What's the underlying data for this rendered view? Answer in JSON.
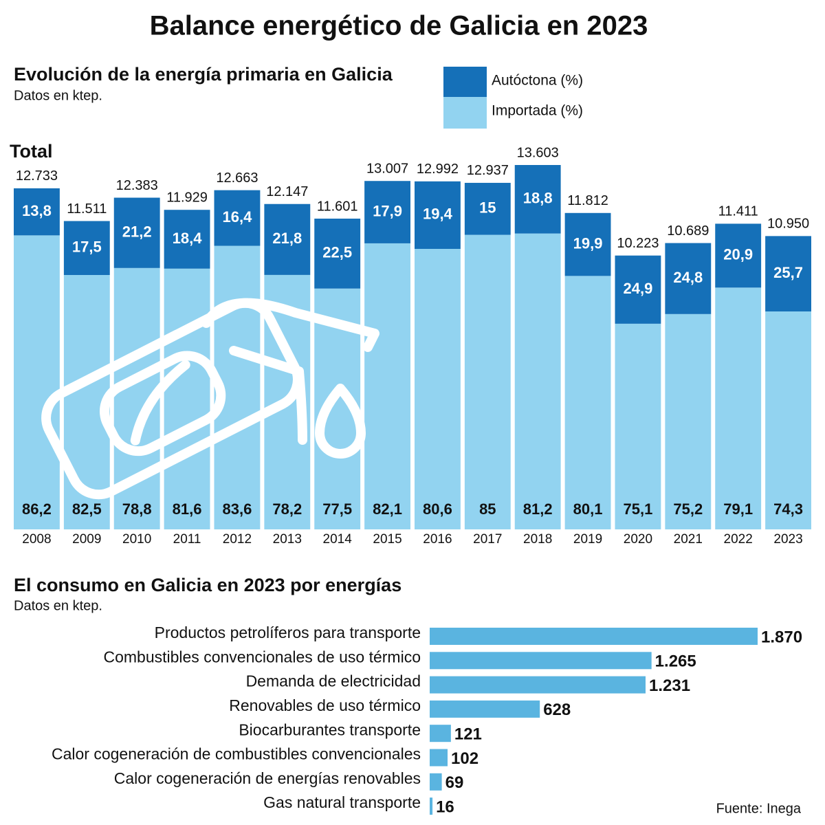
{
  "title": "Balance energético de Galicia en 2023",
  "source": "Fuente: Inega",
  "chart_data": [
    {
      "type": "stacked-bar",
      "title": "Evolución de la energía primaria en Galicia",
      "subtitle": "Datos en ktep.",
      "total_label": "Total",
      "categories": [
        "2008",
        "2009",
        "2010",
        "2011",
        "2012",
        "2013",
        "2014",
        "2015",
        "2016",
        "2017",
        "2018",
        "2019",
        "2020",
        "2021",
        "2022",
        "2023"
      ],
      "values": [
        12733,
        11511,
        12383,
        11929,
        12663,
        12147,
        11601,
        13007,
        12992,
        12937,
        13603,
        11812,
        10223,
        10689,
        11411,
        10950
      ],
      "value_labels": [
        "12.733",
        "11.511",
        "12.383",
        "11.929",
        "12.663",
        "12.147",
        "11.601",
        "13.007",
        "12.992",
        "12.937",
        "13.603",
        "11.812",
        "10.223",
        "10.689",
        "11.411",
        "10.950"
      ],
      "series": [
        {
          "name": "Autóctona (%)",
          "color": "#1570b8",
          "values": [
            13.8,
            17.5,
            21.2,
            18.4,
            16.4,
            21.8,
            22.5,
            17.9,
            19.4,
            15,
            18.8,
            19.9,
            24.9,
            24.8,
            20.9,
            25.7
          ],
          "value_labels": [
            "13,8",
            "17,5",
            "21,2",
            "18,4",
            "16,4",
            "21,8",
            "22,5",
            "17,9",
            "19,4",
            "15",
            "18,8",
            "19,9",
            "24,9",
            "24,8",
            "20,9",
            "25,7"
          ]
        },
        {
          "name": "Importada (%)",
          "color": "#92d3f0",
          "values": [
            86.2,
            82.5,
            78.8,
            81.6,
            83.6,
            78.2,
            77.5,
            82.1,
            80.6,
            85,
            81.2,
            80.1,
            75.1,
            75.2,
            79.1,
            74.3
          ],
          "value_labels": [
            "86,2",
            "82,5",
            "78,8",
            "81,6",
            "83,6",
            "78,2",
            "77,5",
            "82,1",
            "80,6",
            "85",
            "81,2",
            "80,1",
            "75,1",
            "75,2",
            "79,1",
            "74,3"
          ]
        }
      ]
    },
    {
      "type": "hbar",
      "title": "El consumo en Galicia en 2023 por energías",
      "subtitle": "Datos en ktep.",
      "color": "#5ab4e0",
      "categories": [
        "Productos petrolíferos para transporte",
        "Combustibles convencionales de uso térmico",
        "Demanda de electricidad",
        "Renovables de uso térmico",
        "Biocarburantes transporte",
        "Calor cogeneración de combustibles convencionales",
        "Calor cogeneración de energías renovables",
        "Gas natural transporte"
      ],
      "values": [
        1870,
        1265,
        1231,
        628,
        121,
        102,
        69,
        16
      ],
      "value_labels": [
        "1.870",
        "1.265",
        "1.231",
        "628",
        "121",
        "102",
        "69",
        "16"
      ]
    }
  ]
}
